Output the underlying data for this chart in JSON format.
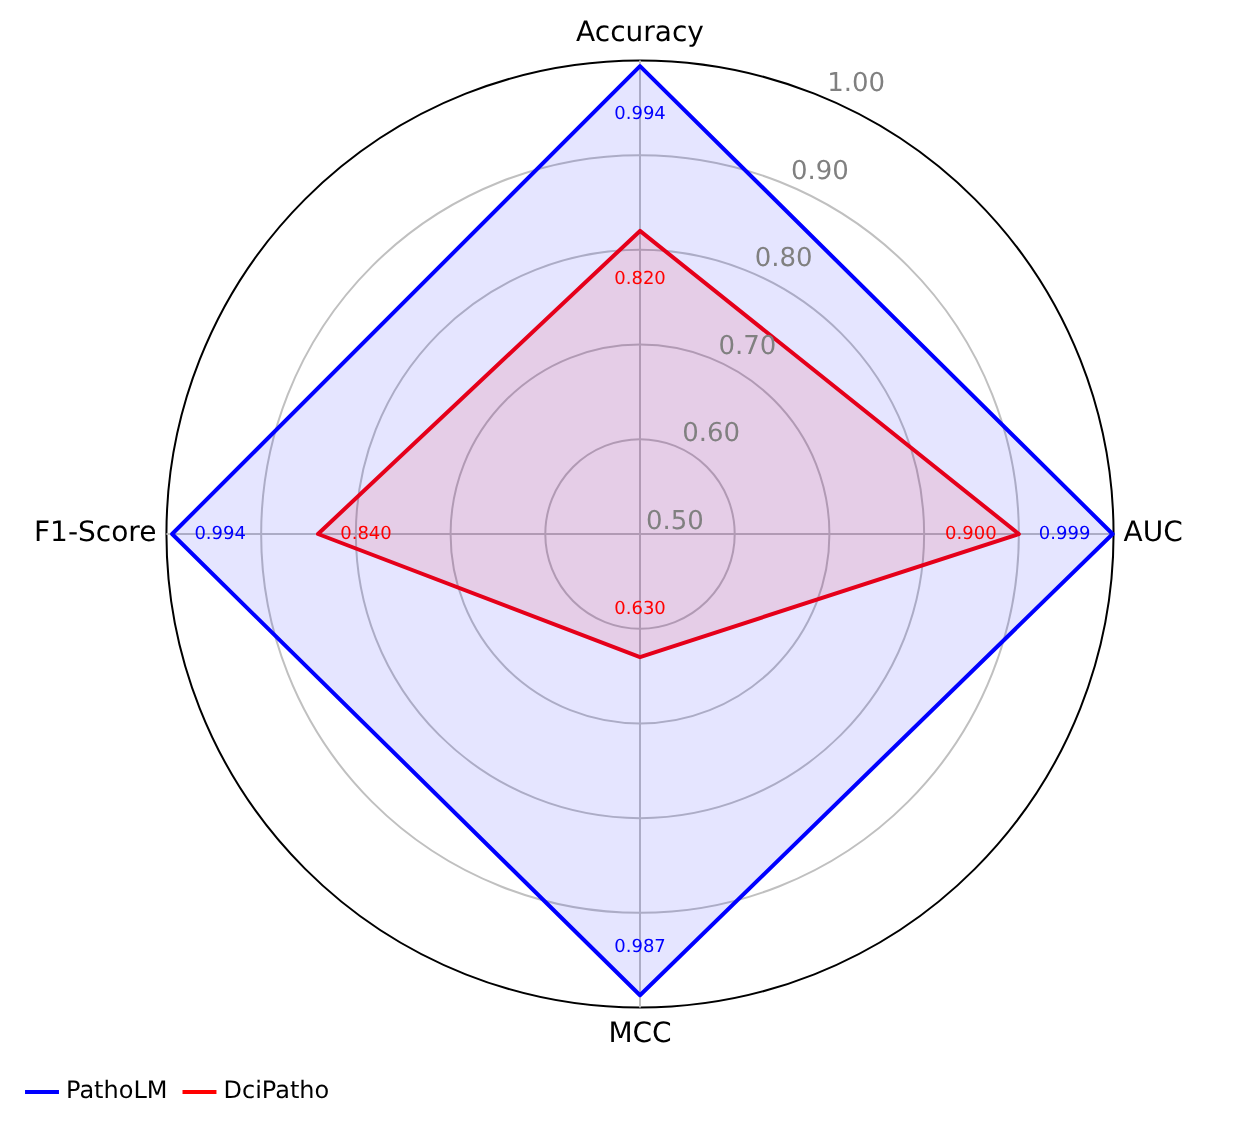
{
  "chart_data": {
    "type": "radar",
    "categories": [
      "Accuracy",
      "AUC",
      "MCC",
      "F1-Score"
    ],
    "series": [
      {
        "name": "PathoLM",
        "color": "#0000ff",
        "values": [
          0.994,
          0.999,
          0.987,
          0.994
        ],
        "value_labels": [
          "0.994",
          "0.999",
          "0.987",
          "0.994"
        ]
      },
      {
        "name": "DciPatho",
        "color": "#ff0000",
        "values": [
          0.82,
          0.9,
          0.63,
          0.84
        ],
        "value_labels": [
          "0.820",
          "0.900",
          "0.630",
          "0.840"
        ]
      }
    ],
    "ylim": [
      0.5,
      1.0
    ],
    "yticks": [
      {
        "value": 0.5,
        "label": "0.50"
      },
      {
        "value": 0.6,
        "label": "0.60"
      },
      {
        "value": 0.7,
        "label": "0.70"
      },
      {
        "value": 0.8,
        "label": "0.80"
      },
      {
        "value": 0.9,
        "label": "0.90"
      },
      {
        "value": 1.0,
        "label": "1.00"
      }
    ],
    "grid": true,
    "legend": "bottom left",
    "marker": "none",
    "line_style": "solid"
  }
}
